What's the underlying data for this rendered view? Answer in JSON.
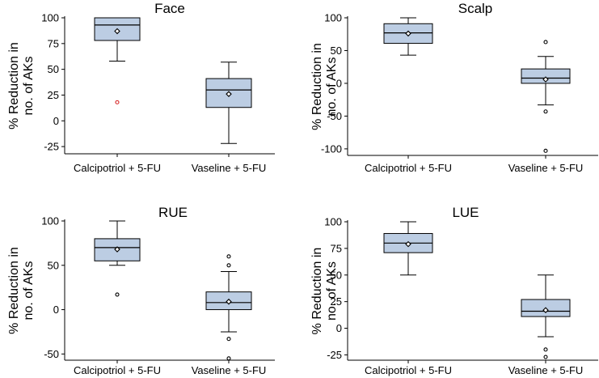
{
  "chart_data": [
    {
      "type": "box",
      "title": "Face",
      "ylabel": [
        "% Reduction in",
        "no. of AKs"
      ],
      "categories": [
        "Calcipotriol + 5-FU",
        "Vaseline + 5-FU"
      ],
      "ylim": [
        -32,
        100
      ],
      "yticks": [
        -25,
        0,
        25,
        50,
        75,
        100
      ],
      "boxes": [
        {
          "min": 58,
          "q1": 78,
          "median": 93,
          "q3": 100,
          "max": 100,
          "mean": 87,
          "outliers": [
            18
          ]
        },
        {
          "min": -22,
          "q1": 13,
          "median": 30,
          "q3": 41,
          "max": 57,
          "mean": 26,
          "outliers": []
        }
      ]
    },
    {
      "type": "box",
      "title": "Scalp",
      "ylabel": [
        "% Reduction in",
        "no. of AKs"
      ],
      "categories": [
        "Calcipotriol + 5-FU",
        "Vaseline + 5-FU"
      ],
      "ylim": [
        -110,
        100
      ],
      "yticks": [
        -100,
        -50,
        0,
        50,
        100
      ],
      "boxes": [
        {
          "min": 43,
          "q1": 61,
          "median": 77,
          "q3": 91,
          "max": 100,
          "mean": 76,
          "outliers": []
        },
        {
          "min": -33,
          "q1": 0,
          "median": 8,
          "q3": 22,
          "max": 41,
          "mean": 6,
          "outliers": [
            63,
            -43,
            -103
          ]
        }
      ]
    },
    {
      "type": "box",
      "title": "RUE",
      "ylabel": [
        "% Reduction in",
        "no. of AKs"
      ],
      "categories": [
        "Calcipotriol + 5-FU",
        "Vaseline + 5-FU"
      ],
      "ylim": [
        -57,
        100
      ],
      "yticks": [
        -50,
        0,
        50,
        100
      ],
      "boxes": [
        {
          "min": 50,
          "q1": 55,
          "median": 70,
          "q3": 80,
          "max": 100,
          "mean": 68,
          "outliers": [
            17
          ]
        },
        {
          "min": -25,
          "q1": 0,
          "median": 8,
          "q3": 20,
          "max": 43,
          "mean": 9,
          "outliers": [
            60,
            50,
            -33,
            -55
          ]
        }
      ]
    },
    {
      "type": "box",
      "title": "LUE",
      "ylabel": [
        "% Reduction in",
        "no. of AKs"
      ],
      "categories": [
        "Calcipotriol + 5-FU",
        "Vaseline + 5-FU"
      ],
      "ylim": [
        -30,
        100
      ],
      "yticks": [
        -25,
        0,
        25,
        50,
        75,
        100
      ],
      "boxes": [
        {
          "min": 50,
          "q1": 71,
          "median": 80,
          "q3": 89,
          "max": 100,
          "mean": 79,
          "outliers": []
        },
        {
          "min": -8,
          "q1": 11,
          "median": 16,
          "q3": 27,
          "max": 50,
          "mean": 17,
          "outliers": [
            -20,
            -27
          ]
        }
      ]
    }
  ],
  "colors": {
    "box_fill": "#bccde3",
    "outlier_highlight": "#d62728",
    "stroke": "#000000"
  }
}
